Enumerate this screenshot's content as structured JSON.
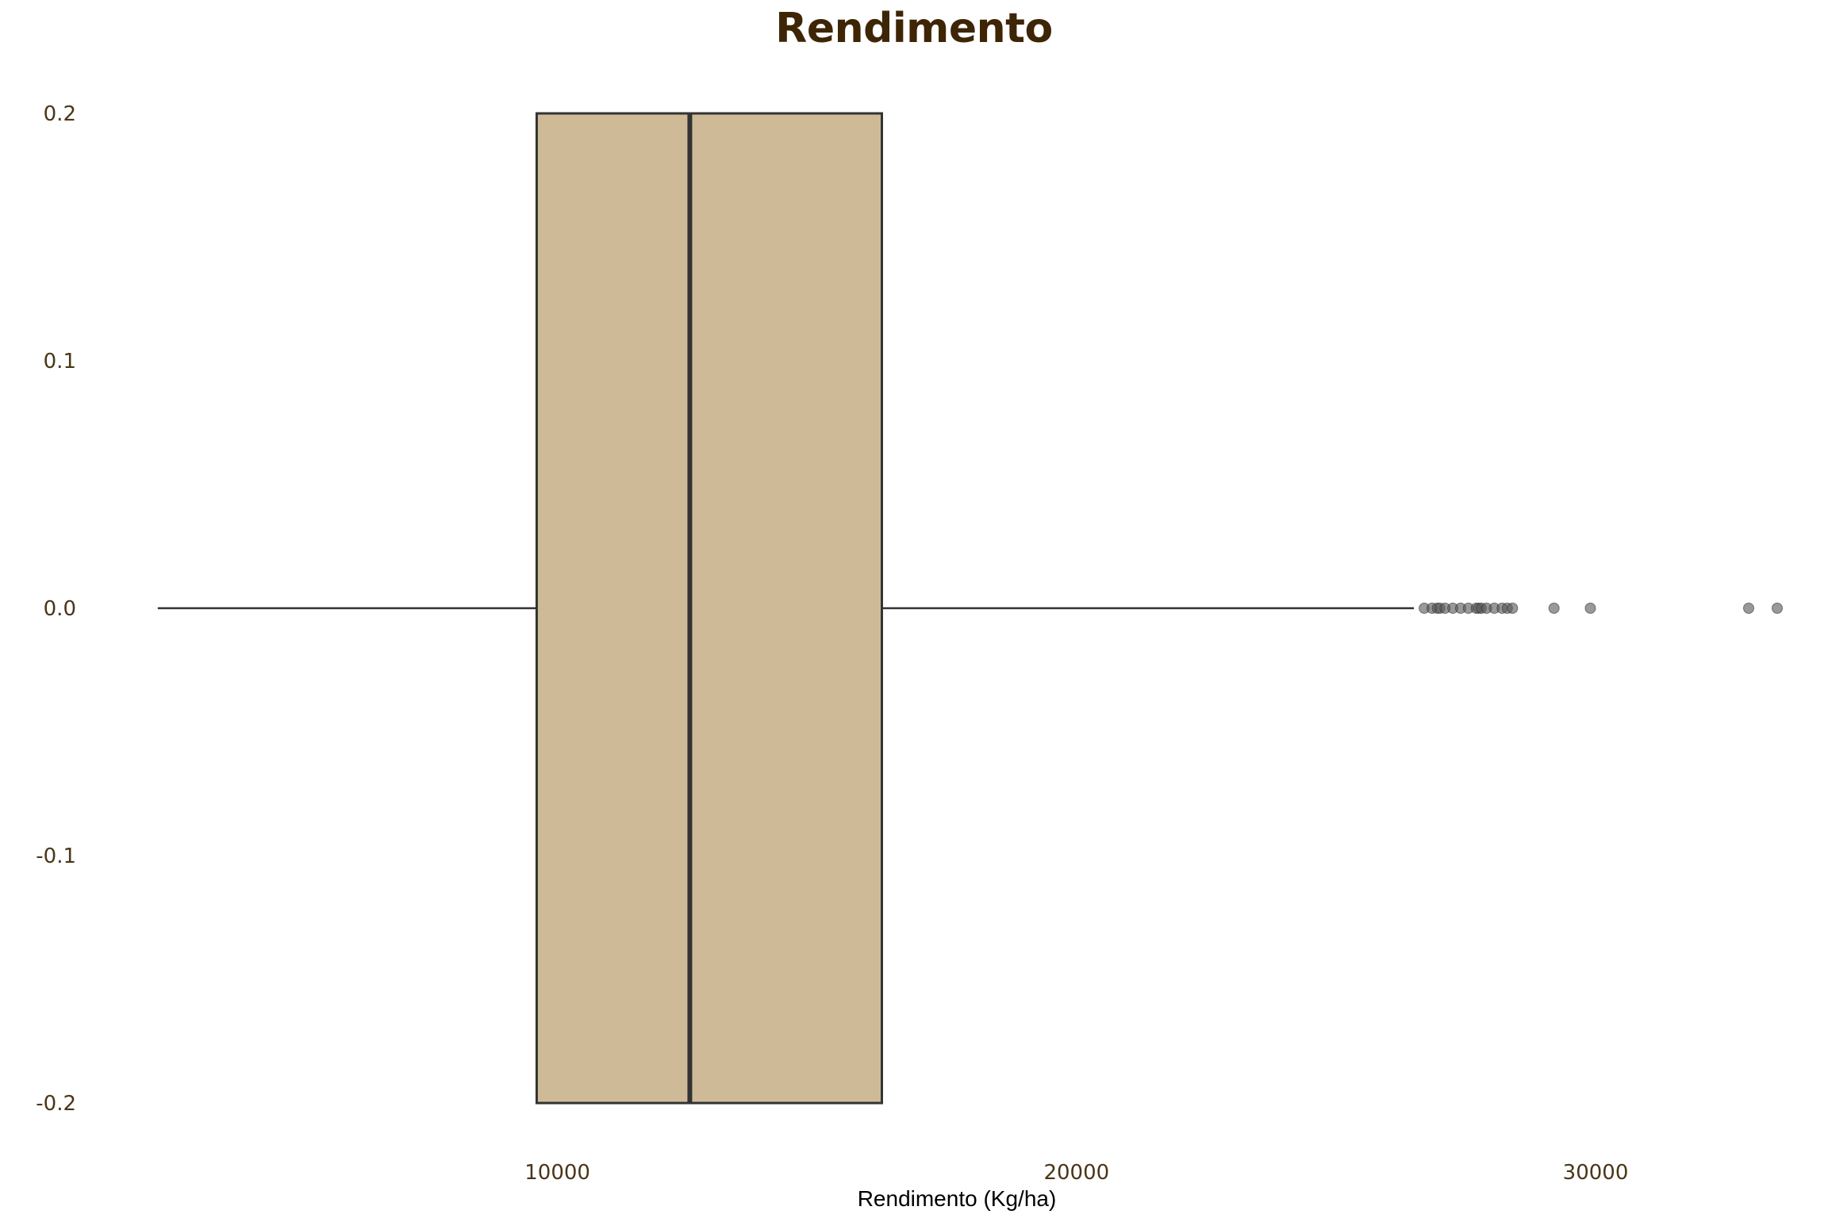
{
  "chart_data": {
    "type": "boxplot",
    "title": "Rendimento",
    "xlabel": "Rendimento (Kg/ha)",
    "ylabel": "",
    "orientation": "horizontal",
    "xlim": [
      1400,
      33500
    ],
    "ylim": [
      -0.2,
      0.2
    ],
    "x_ticks": [
      10000,
      20000,
      30000
    ],
    "y_ticks": [
      0.2,
      0.1,
      0.0,
      -0.1,
      -0.2
    ],
    "y_tick_labels": [
      "0.2",
      "0.1",
      "0.0",
      "-0.1",
      "-0.2"
    ],
    "x_tick_labels": [
      "10000",
      "20000",
      "30000"
    ],
    "grid": false,
    "box": {
      "whisker_low": 2300,
      "q1": 9600,
      "median": 12550,
      "q3": 16250,
      "whisker_high": 26500,
      "y_bottom": -0.2,
      "y_top": 0.2,
      "y_center": 0.0
    },
    "outliers": [
      26700,
      26850,
      26950,
      27000,
      27100,
      27250,
      27400,
      27550,
      27700,
      27750,
      27800,
      27900,
      28050,
      28200,
      28300,
      28400,
      29200,
      29900,
      32950,
      33500
    ],
    "colors": {
      "box_fill": "#cfba98",
      "box_edge": "#333333",
      "title": "#3d2506",
      "tick_text": "#4a3618"
    }
  }
}
